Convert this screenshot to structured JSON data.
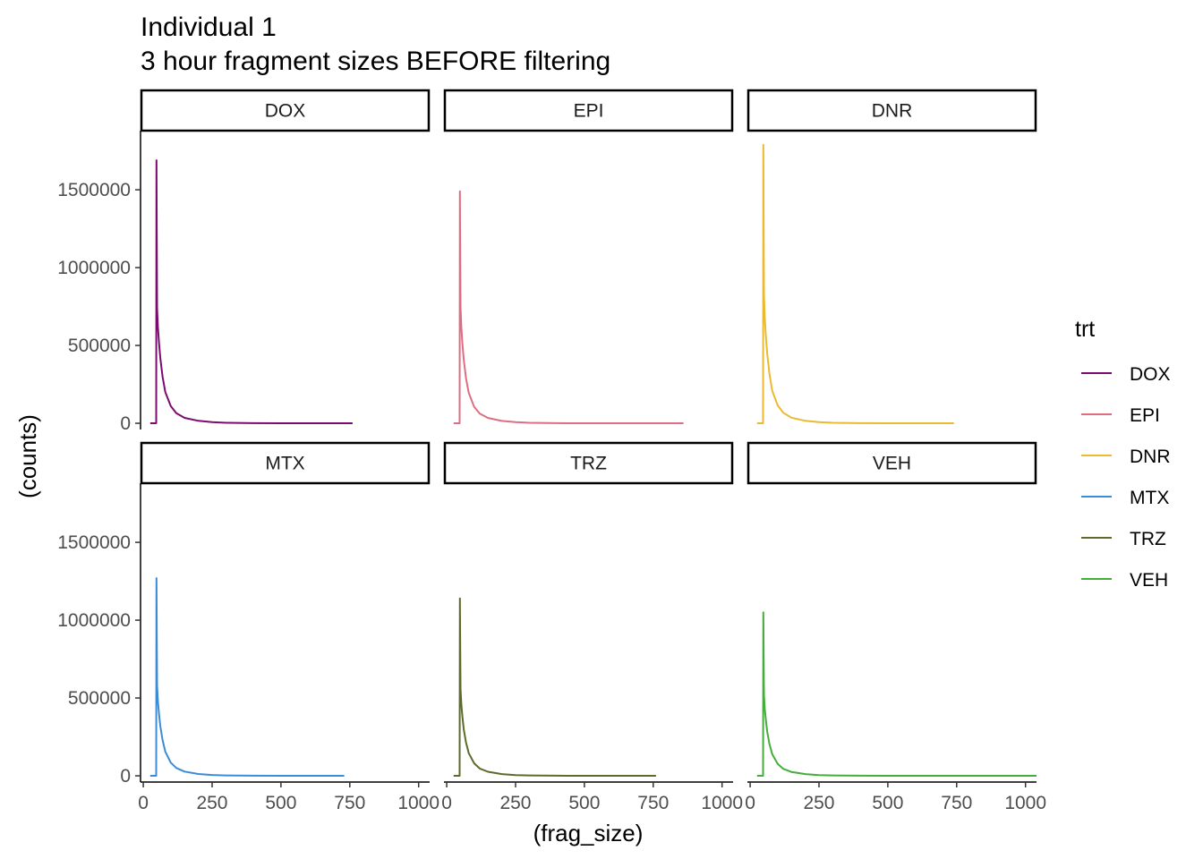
{
  "chart_data": {
    "type": "line",
    "title": "Individual 1",
    "subtitle": "3 hour fragment sizes BEFORE filtering",
    "xlabel": "(frag_size)",
    "ylabel": "(counts)",
    "xlim": [
      -10,
      1040
    ],
    "ylim": [
      -40000,
      1880000
    ],
    "x_ticks": [
      0,
      250,
      500,
      750,
      1000
    ],
    "y_ticks": [
      0,
      500000,
      1000000,
      1500000
    ],
    "legend": {
      "title": "trt",
      "position": "right"
    },
    "grid": false,
    "facets": [
      "DOX",
      "EPI",
      "DNR",
      "MTX",
      "TRZ",
      "VEH"
    ],
    "series": [
      {
        "name": "DOX",
        "color": "#7b0b6e",
        "x": [
          25,
          47,
          48,
          50,
          53,
          57,
          62,
          70,
          80,
          100,
          120,
          150,
          200,
          250,
          300,
          400,
          500,
          600,
          700,
          760
        ],
        "y": [
          0,
          0,
          1690000,
          740000,
          620000,
          520000,
          420000,
          300000,
          200000,
          110000,
          65000,
          35000,
          16000,
          7000,
          3000,
          1000,
          500,
          200,
          80,
          0
        ]
      },
      {
        "name": "EPI",
        "color": "#dd6e82",
        "x": [
          25,
          47,
          48,
          50,
          53,
          57,
          62,
          70,
          80,
          100,
          120,
          150,
          200,
          250,
          300,
          400,
          500,
          600,
          700,
          860
        ],
        "y": [
          0,
          0,
          1490000,
          750000,
          620000,
          510000,
          410000,
          290000,
          195000,
          105000,
          62000,
          34000,
          15000,
          7000,
          3000,
          1000,
          500,
          200,
          80,
          0
        ]
      },
      {
        "name": "DNR",
        "color": "#ebba2f",
        "x": [
          25,
          47,
          48,
          50,
          53,
          57,
          62,
          70,
          80,
          100,
          120,
          150,
          200,
          250,
          300,
          400,
          500,
          600,
          700,
          740
        ],
        "y": [
          0,
          0,
          1790000,
          830000,
          680000,
          560000,
          450000,
          320000,
          210000,
          115000,
          68000,
          36000,
          16000,
          7000,
          3000,
          1000,
          500,
          200,
          80,
          0
        ]
      },
      {
        "name": "MTX",
        "color": "#3b8cd6",
        "x": [
          25,
          47,
          48,
          50,
          53,
          57,
          62,
          70,
          80,
          100,
          120,
          150,
          200,
          250,
          300,
          400,
          500,
          600,
          700,
          730
        ],
        "y": [
          0,
          0,
          1270000,
          580000,
          480000,
          400000,
          320000,
          230000,
          155000,
          85000,
          50000,
          27000,
          12000,
          5500,
          2500,
          800,
          400,
          150,
          60,
          0
        ]
      },
      {
        "name": "TRZ",
        "color": "#5c6a2a",
        "x": [
          25,
          47,
          48,
          50,
          53,
          57,
          62,
          70,
          80,
          100,
          120,
          150,
          200,
          250,
          300,
          400,
          500,
          600,
          700,
          760
        ],
        "y": [
          0,
          0,
          1140000,
          560000,
          460000,
          380000,
          300000,
          215000,
          145000,
          80000,
          47000,
          26000,
          11000,
          5000,
          2300,
          800,
          400,
          150,
          60,
          0
        ]
      },
      {
        "name": "VEH",
        "color": "#45ad3c",
        "x": [
          25,
          47,
          48,
          50,
          53,
          57,
          62,
          70,
          80,
          100,
          120,
          150,
          200,
          250,
          300,
          400,
          500,
          600,
          700,
          1040
        ],
        "y": [
          0,
          0,
          1050000,
          520000,
          430000,
          360000,
          285000,
          205000,
          140000,
          77000,
          45000,
          25000,
          11000,
          5000,
          2300,
          800,
          400,
          150,
          60,
          0
        ]
      }
    ]
  }
}
